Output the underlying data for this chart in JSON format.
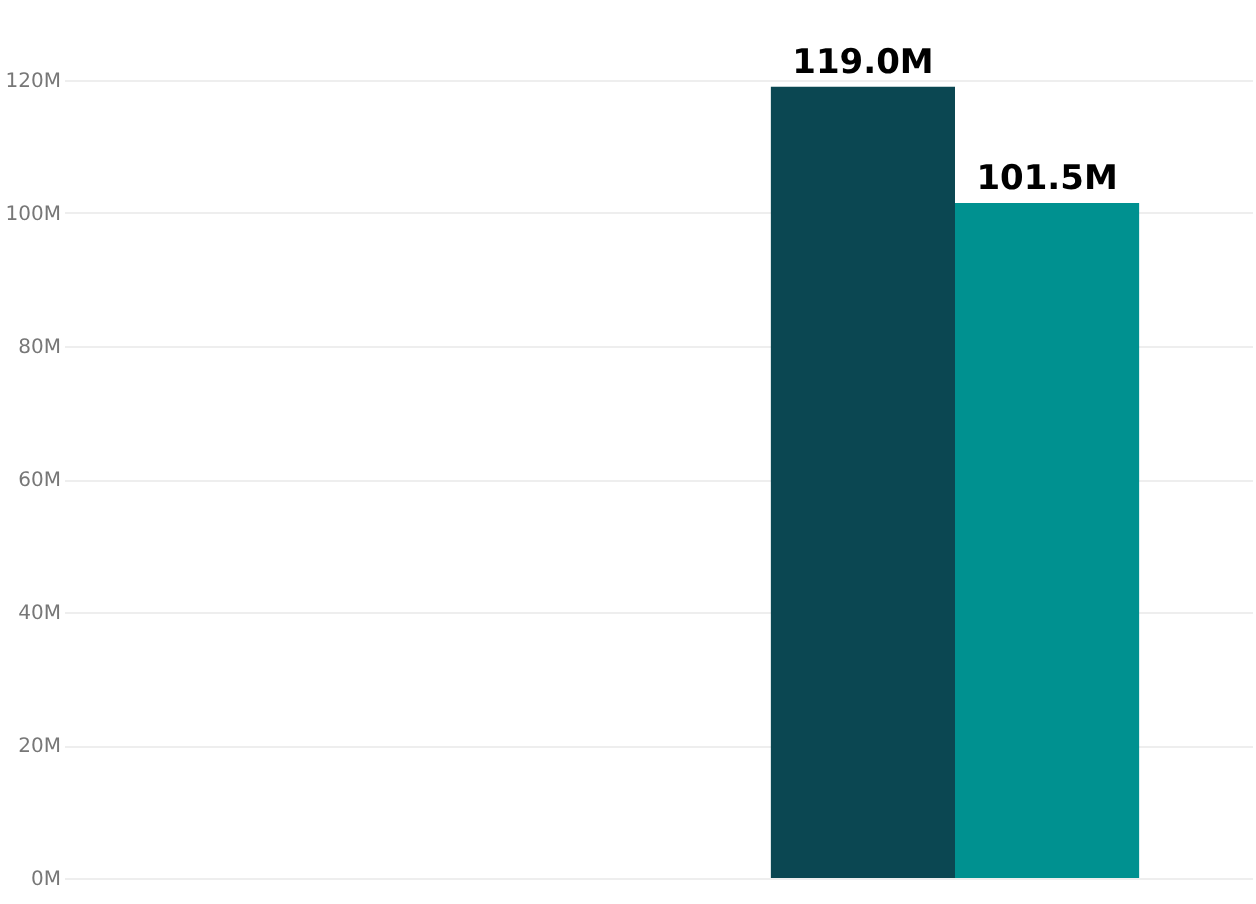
{
  "chart_data": {
    "type": "bar",
    "categories": [
      null,
      null
    ],
    "series": [
      {
        "color": "#0b4752",
        "values": [
          null,
          119.0
        ],
        "value_labels": [
          null,
          "119.0M"
        ]
      },
      {
        "color": "#009190",
        "values": [
          null,
          101.5
        ],
        "value_labels": [
          null,
          "101.5M"
        ]
      }
    ],
    "ylim": [
      0,
      120
    ],
    "yticks": [
      {
        "value": 0,
        "label": "0M"
      },
      {
        "value": 20,
        "label": "20M"
      },
      {
        "value": 40,
        "label": "40M"
      },
      {
        "value": 60,
        "label": "60M"
      },
      {
        "value": 80,
        "label": "80M"
      },
      {
        "value": 100,
        "label": "100M"
      },
      {
        "value": 120,
        "label": "120M"
      }
    ],
    "grid": "y",
    "tick_labels": "y",
    "legend": false
  }
}
